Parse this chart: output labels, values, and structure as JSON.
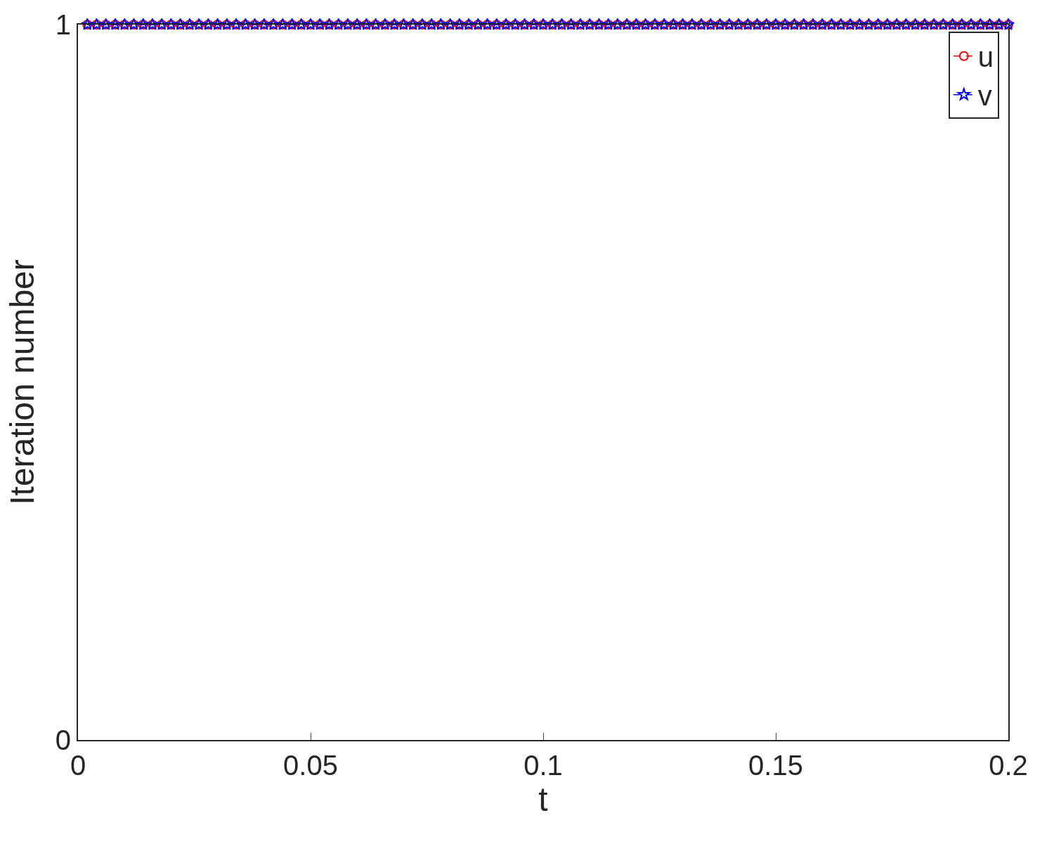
{
  "chart_data": {
    "type": "line",
    "xlabel": "t",
    "ylabel": "Iteration number",
    "x": [
      0.002,
      0.004,
      0.006,
      0.008,
      0.01,
      0.012,
      0.014,
      0.016,
      0.018,
      0.02,
      0.022,
      0.024,
      0.026,
      0.028,
      0.03,
      0.032,
      0.034,
      0.036,
      0.038,
      0.04,
      0.042,
      0.044,
      0.046,
      0.048,
      0.05,
      0.052,
      0.054,
      0.056,
      0.058,
      0.06,
      0.062,
      0.064,
      0.066,
      0.068,
      0.07,
      0.072,
      0.074,
      0.076,
      0.078,
      0.08,
      0.082,
      0.084,
      0.086,
      0.088,
      0.09,
      0.092,
      0.094,
      0.096,
      0.098,
      0.1,
      0.102,
      0.104,
      0.106,
      0.108,
      0.11,
      0.112,
      0.114,
      0.116,
      0.118,
      0.12,
      0.122,
      0.124,
      0.126,
      0.128,
      0.13,
      0.132,
      0.134,
      0.136,
      0.138,
      0.14,
      0.142,
      0.144,
      0.146,
      0.148,
      0.15,
      0.152,
      0.154,
      0.156,
      0.158,
      0.16,
      0.162,
      0.164,
      0.166,
      0.168,
      0.17,
      0.172,
      0.174,
      0.176,
      0.178,
      0.18,
      0.182,
      0.184,
      0.186,
      0.188,
      0.19,
      0.192,
      0.194,
      0.196,
      0.198,
      0.2
    ],
    "series": [
      {
        "name": "u",
        "color": "#ff0000",
        "marker": "circle",
        "line_style": "dashed",
        "values": [
          1,
          1,
          1,
          1,
          1,
          1,
          1,
          1,
          1,
          1,
          1,
          1,
          1,
          1,
          1,
          1,
          1,
          1,
          1,
          1,
          1,
          1,
          1,
          1,
          1,
          1,
          1,
          1,
          1,
          1,
          1,
          1,
          1,
          1,
          1,
          1,
          1,
          1,
          1,
          1,
          1,
          1,
          1,
          1,
          1,
          1,
          1,
          1,
          1,
          1,
          1,
          1,
          1,
          1,
          1,
          1,
          1,
          1,
          1,
          1,
          1,
          1,
          1,
          1,
          1,
          1,
          1,
          1,
          1,
          1,
          1,
          1,
          1,
          1,
          1,
          1,
          1,
          1,
          1,
          1,
          1,
          1,
          1,
          1,
          1,
          1,
          1,
          1,
          1,
          1,
          1,
          1,
          1,
          1,
          1,
          1,
          1,
          1,
          1,
          1
        ]
      },
      {
        "name": "v",
        "color": "#0000ff",
        "marker": "star",
        "line_style": "dashed",
        "values": [
          1,
          1,
          1,
          1,
          1,
          1,
          1,
          1,
          1,
          1,
          1,
          1,
          1,
          1,
          1,
          1,
          1,
          1,
          1,
          1,
          1,
          1,
          1,
          1,
          1,
          1,
          1,
          1,
          1,
          1,
          1,
          1,
          1,
          1,
          1,
          1,
          1,
          1,
          1,
          1,
          1,
          1,
          1,
          1,
          1,
          1,
          1,
          1,
          1,
          1,
          1,
          1,
          1,
          1,
          1,
          1,
          1,
          1,
          1,
          1,
          1,
          1,
          1,
          1,
          1,
          1,
          1,
          1,
          1,
          1,
          1,
          1,
          1,
          1,
          1,
          1,
          1,
          1,
          1,
          1,
          1,
          1,
          1,
          1,
          1,
          1,
          1,
          1,
          1,
          1,
          1,
          1,
          1,
          1,
          1,
          1,
          1,
          1,
          1,
          1
        ]
      }
    ],
    "xlim": [
      0,
      0.2
    ],
    "xticks": [
      0,
      0.05,
      0.1,
      0.15,
      0.2
    ],
    "ylim": [
      0,
      1
    ],
    "yticks": [
      0,
      1
    ],
    "legend": "top right"
  }
}
